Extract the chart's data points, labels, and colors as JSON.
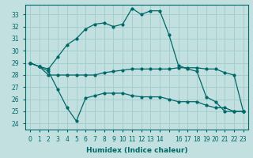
{
  "xlabel": "Humidex (Indice chaleur)",
  "bg_color": "#c2e0e0",
  "grid_color": "#a0cccc",
  "line_color": "#006868",
  "xlim": [
    -0.5,
    23.5
  ],
  "ylim": [
    23.5,
    33.8
  ],
  "yticks": [
    24,
    25,
    26,
    27,
    28,
    29,
    30,
    31,
    32,
    33
  ],
  "series1_x": [
    0,
    1,
    2,
    3,
    4,
    5,
    6,
    7,
    8,
    9,
    10,
    11,
    12,
    13,
    14,
    15,
    16,
    17,
    18,
    19,
    20,
    21,
    22,
    23
  ],
  "series1_y": [
    29.0,
    28.7,
    28.0,
    28.0,
    28.0,
    28.0,
    28.0,
    28.0,
    28.2,
    28.3,
    28.4,
    28.5,
    28.5,
    28.5,
    28.5,
    28.5,
    28.6,
    28.6,
    28.6,
    28.5,
    28.5,
    28.2,
    28.0,
    25.0
  ],
  "series2_x": [
    0,
    1,
    2,
    3,
    4,
    5,
    6,
    7,
    8,
    9,
    10,
    11,
    12,
    13,
    14,
    15,
    16,
    17,
    18,
    19,
    20,
    21,
    22,
    23
  ],
  "series2_y": [
    29.0,
    28.7,
    28.5,
    29.5,
    30.5,
    31.0,
    31.8,
    32.2,
    32.3,
    32.0,
    32.2,
    33.5,
    33.0,
    33.3,
    33.3,
    31.3,
    28.8,
    28.5,
    28.3,
    26.2,
    25.8,
    25.0,
    25.0,
    25.0
  ],
  "series3_x": [
    0,
    1,
    2,
    3,
    4,
    5,
    6,
    7,
    8,
    9,
    10,
    11,
    12,
    13,
    14,
    15,
    16,
    17,
    18,
    19,
    20,
    21,
    22,
    23
  ],
  "series3_y": [
    29.0,
    28.7,
    28.3,
    26.8,
    25.3,
    24.2,
    26.1,
    26.3,
    26.5,
    26.5,
    26.5,
    26.3,
    26.2,
    26.2,
    26.2,
    26.0,
    25.8,
    25.8,
    25.8,
    25.5,
    25.3,
    25.3,
    25.0,
    25.0
  ],
  "xlabel_fontsize": 6.5,
  "tick_fontsize": 5.5
}
